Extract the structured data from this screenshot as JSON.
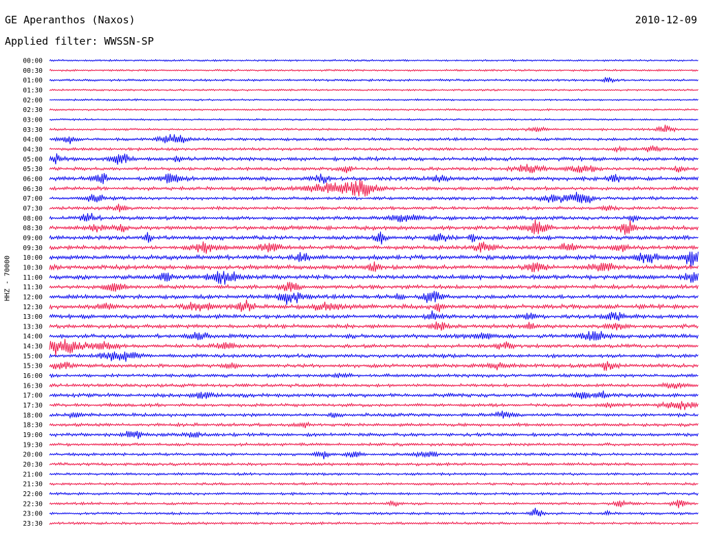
{
  "header": {
    "station": "GE Aperanthos (Naxos)",
    "date": "2010-12-09",
    "filter": "Applied filter: WWSSN-SP"
  },
  "chart_data": {
    "type": "line",
    "ylabel": "HHZ - 70000",
    "colors": [
      "#0000ee",
      "#ee1144"
    ],
    "row_labels": [
      "00:00",
      "00:30",
      "01:00",
      "01:30",
      "02:00",
      "02:30",
      "03:00",
      "03:30",
      "04:00",
      "04:30",
      "05:00",
      "05:30",
      "06:00",
      "06:30",
      "07:00",
      "07:30",
      "08:00",
      "08:30",
      "09:00",
      "09:30",
      "10:00",
      "10:30",
      "11:00",
      "11:30",
      "12:00",
      "12:30",
      "13:00",
      "13:30",
      "14:00",
      "14:30",
      "15:00",
      "15:30",
      "16:00",
      "16:30",
      "17:00",
      "17:30",
      "18:00",
      "18:30",
      "19:00",
      "19:30",
      "20:00",
      "20:30",
      "21:00",
      "21:30",
      "22:00",
      "22:30",
      "23:00",
      "23:30"
    ],
    "noise_levels": [
      1.0,
      1.0,
      1.2,
      1.0,
      1.0,
      1.0,
      1.0,
      1.2,
      1.6,
      1.6,
      2.0,
      1.8,
      2.2,
      2.0,
      1.8,
      1.8,
      2.0,
      2.2,
      2.2,
      2.2,
      2.4,
      2.4,
      2.4,
      2.2,
      2.2,
      2.4,
      2.2,
      2.2,
      2.2,
      2.0,
      2.0,
      2.0,
      1.8,
      1.8,
      2.0,
      1.8,
      1.8,
      1.8,
      1.8,
      1.6,
      1.6,
      1.6,
      1.4,
      1.4,
      1.4,
      1.4,
      1.4,
      1.4
    ],
    "events": [
      [],
      [],
      [
        [
          0.86,
          5,
          6
        ]
      ],
      [],
      [],
      [],
      [],
      [
        [
          0.95,
          7,
          8
        ],
        [
          0.75,
          4,
          10
        ]
      ],
      [
        [
          0.03,
          6,
          8
        ],
        [
          0.18,
          6,
          10
        ],
        [
          0.2,
          7,
          8
        ]
      ],
      [
        [
          0.93,
          7,
          7
        ],
        [
          0.88,
          3,
          10
        ]
      ],
      [
        [
          0.01,
          9,
          6
        ],
        [
          0.11,
          11,
          8
        ],
        [
          0.2,
          5,
          6
        ]
      ],
      [
        [
          0.46,
          7,
          6
        ],
        [
          0.74,
          8,
          14
        ],
        [
          0.82,
          6,
          14
        ],
        [
          0.97,
          6,
          4
        ]
      ],
      [
        [
          0.08,
          8,
          8
        ],
        [
          0.19,
          9,
          10
        ],
        [
          0.42,
          8,
          8
        ],
        [
          0.6,
          6,
          8
        ],
        [
          0.87,
          5,
          6
        ]
      ],
      [
        [
          0.44,
          9,
          30
        ],
        [
          0.48,
          12,
          14
        ]
      ],
      [
        [
          0.07,
          8,
          8
        ],
        [
          0.82,
          11,
          10
        ],
        [
          0.78,
          6,
          14
        ]
      ],
      [
        [
          0.11,
          5,
          6
        ],
        [
          0.86,
          4,
          8
        ]
      ],
      [
        [
          0.06,
          7,
          8
        ],
        [
          0.55,
          8,
          12
        ],
        [
          0.9,
          4,
          6
        ]
      ],
      [
        [
          0.07,
          8,
          6
        ],
        [
          0.11,
          6,
          6
        ],
        [
          0.75,
          11,
          14
        ],
        [
          0.89,
          10,
          8
        ]
      ],
      [
        [
          0.15,
          9,
          4
        ],
        [
          0.51,
          10,
          6
        ],
        [
          0.6,
          7,
          8
        ],
        [
          0.65,
          8,
          4
        ]
      ],
      [
        [
          0.24,
          8,
          14
        ],
        [
          0.34,
          7,
          10
        ],
        [
          0.67,
          8,
          10
        ],
        [
          0.8,
          8,
          8
        ],
        [
          0.88,
          9,
          6
        ]
      ],
      [
        [
          0.39,
          9,
          6
        ],
        [
          0.92,
          8,
          14
        ],
        [
          0.99,
          14,
          8
        ]
      ],
      [
        [
          0.0,
          5,
          8
        ],
        [
          0.5,
          8,
          6
        ],
        [
          0.75,
          9,
          10
        ],
        [
          0.85,
          8,
          12
        ]
      ],
      [
        [
          0.18,
          8,
          8
        ],
        [
          0.27,
          10,
          16
        ],
        [
          0.99,
          9,
          8
        ]
      ],
      [
        [
          0.1,
          8,
          10
        ],
        [
          0.37,
          9,
          8
        ]
      ],
      [
        [
          0.37,
          10,
          14
        ],
        [
          0.59,
          11,
          8
        ],
        [
          0.54,
          5,
          4
        ]
      ],
      [
        [
          0.09,
          6,
          8
        ],
        [
          0.23,
          8,
          12
        ],
        [
          0.3,
          10,
          10
        ],
        [
          0.43,
          7,
          14
        ],
        [
          0.6,
          9,
          4
        ]
      ],
      [
        [
          0.59,
          10,
          6
        ],
        [
          0.87,
          7,
          10
        ],
        [
          0.74,
          6,
          6
        ]
      ],
      [
        [
          0.6,
          9,
          8
        ],
        [
          0.74,
          10,
          4
        ],
        [
          0.87,
          6,
          8
        ]
      ],
      [
        [
          0.23,
          7,
          8
        ],
        [
          0.84,
          9,
          12
        ],
        [
          0.67,
          4,
          10
        ]
      ],
      [
        [
          0.01,
          14,
          20
        ],
        [
          0.08,
          6,
          18
        ],
        [
          0.27,
          5,
          12
        ],
        [
          0.7,
          5,
          12
        ]
      ],
      [
        [
          0.09,
          8,
          10
        ],
        [
          0.12,
          7,
          12
        ]
      ],
      [
        [
          0.02,
          6,
          10
        ],
        [
          0.28,
          5,
          8
        ],
        [
          0.69,
          5,
          14
        ],
        [
          0.86,
          6,
          8
        ]
      ],
      [
        [
          0.45,
          4,
          8
        ]
      ],
      [
        [
          0.96,
          5,
          10
        ]
      ],
      [
        [
          0.24,
          6,
          10
        ],
        [
          0.82,
          7,
          10
        ],
        [
          0.85,
          6,
          6
        ]
      ],
      [
        [
          0.97,
          8,
          16
        ],
        [
          0.86,
          4,
          8
        ]
      ],
      [
        [
          0.04,
          5,
          6
        ],
        [
          0.7,
          7,
          8
        ],
        [
          0.44,
          4,
          6
        ]
      ],
      [
        [
          0.39,
          5,
          6
        ]
      ],
      [
        [
          0.13,
          9,
          8
        ],
        [
          0.22,
          5,
          8
        ]
      ],
      [],
      [
        [
          0.42,
          6,
          8
        ],
        [
          0.47,
          5,
          8
        ],
        [
          0.58,
          5,
          12
        ]
      ],
      [],
      [],
      [],
      [],
      [
        [
          0.53,
          5,
          6
        ],
        [
          0.88,
          7,
          6
        ],
        [
          0.97,
          6,
          8
        ]
      ],
      [
        [
          0.75,
          7,
          8
        ],
        [
          0.86,
          4,
          4
        ]
      ],
      []
    ]
  }
}
